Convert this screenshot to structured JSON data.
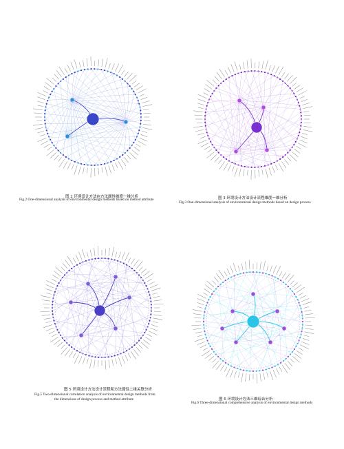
{
  "figures": [
    {
      "id": "fig2",
      "caption_cn": "图 2   环境设计方法在方法属性维度一维分析",
      "caption_en": "Fig.2   One-dimensional analysis of environmental design methods based on method attribute",
      "caption_en_line2": "",
      "theme": {
        "primary": "#3a47c9",
        "secondary": "#2e8fd8",
        "rim": "#3c3fa8"
      }
    },
    {
      "id": "fig3",
      "caption_cn": "图 3   环境设计方法设计流程维度一维分析",
      "caption_en": "Fig.3   One-dimensional analysis of environmental design methods based on design process",
      "caption_en_line2": "",
      "theme": {
        "primary": "#7a2fd0",
        "secondary": "#b04be0",
        "rim": "#4a2a9a"
      }
    },
    {
      "id": "fig5",
      "caption_cn": "图 5   环境设计方法设计流程和方法属性二维关联分析",
      "caption_en": "Fig.5   Two-dimensional correlation analysis of environmental design methods from",
      "caption_en_line2": "the dimensions of design process and method attribute",
      "theme": {
        "primary": "#4a3fc4",
        "secondary": "#7d5ad8",
        "rim": "#3a3aa0"
      }
    },
    {
      "id": "fig6",
      "caption_cn": "图 6   环境设计方法三维综合分析",
      "caption_en": "Fig.6   Three-dimensional comprehensive analysis of environmental design methods",
      "caption_en_line2": "",
      "theme": {
        "primary": "#2bc4e6",
        "secondary": "#9b4fd8",
        "rim": "#7a3fc0"
      }
    }
  ]
}
